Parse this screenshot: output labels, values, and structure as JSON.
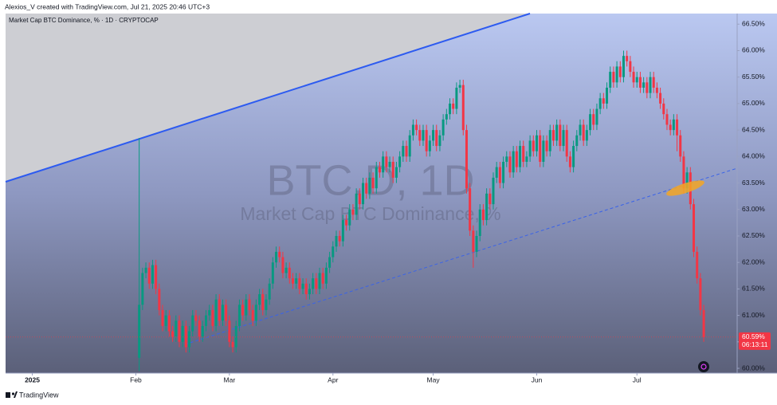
{
  "header": "Alexios_V created with TradingView.com, Jul 21, 2025 20:46 UTC+3",
  "footer": "TradingView",
  "chart_data": {
    "type": "candlestick",
    "title": "Market Cap BTC Dominance, % · 1D · CRYPTOCAP",
    "watermark": "BTC.D, 1D",
    "watermark_subtitle": "Market Cap BTC Dominance, %",
    "last_price_label": "60.59%",
    "countdown": "06:13:11",
    "up_color": "#089981",
    "down_color": "#f23645",
    "grid": false,
    "xlim": [
      -7,
      212
    ],
    "xticks": [
      {
        "value": 1,
        "label": "2025"
      },
      {
        "value": 32,
        "label": "Feb"
      },
      {
        "value": 60,
        "label": "Mar"
      },
      {
        "value": 91,
        "label": "Apr"
      },
      {
        "value": 121,
        "label": "May"
      },
      {
        "value": 152,
        "label": "Jun"
      },
      {
        "value": 182,
        "label": "Jul"
      }
    ],
    "ylim": [
      59.91,
      66.7
    ],
    "yticks": [
      {
        "value": 60,
        "label": "60.00%"
      },
      {
        "value": 60.5,
        "label": "60.50%"
      },
      {
        "value": 61,
        "label": "61.00%"
      },
      {
        "value": 61.5,
        "label": "61.50%"
      },
      {
        "value": 62,
        "label": "62.00%"
      },
      {
        "value": 62.5,
        "label": "62.50%"
      },
      {
        "value": 63,
        "label": "63.00%"
      },
      {
        "value": 63.5,
        "label": "63.50%"
      },
      {
        "value": 64,
        "label": "64.00%"
      },
      {
        "value": 64.5,
        "label": "64.50%"
      },
      {
        "value": 65,
        "label": "65.00%"
      },
      {
        "value": 65.5,
        "label": "65.50%"
      },
      {
        "value": 66,
        "label": "66.00%"
      },
      {
        "value": 66.5,
        "label": "66.50%"
      }
    ],
    "x": [
      33,
      34,
      35,
      36,
      37,
      38,
      39,
      40,
      41,
      42,
      43,
      44,
      45,
      46,
      47,
      48,
      49,
      50,
      51,
      52,
      53,
      54,
      55,
      56,
      57,
      58,
      59,
      60,
      61,
      62,
      63,
      64,
      65,
      66,
      67,
      68,
      69,
      70,
      71,
      72,
      73,
      74,
      75,
      76,
      77,
      78,
      79,
      80,
      81,
      82,
      83,
      84,
      85,
      86,
      87,
      88,
      89,
      90,
      91,
      92,
      93,
      94,
      95,
      96,
      97,
      98,
      99,
      100,
      101,
      102,
      103,
      104,
      105,
      106,
      107,
      108,
      109,
      110,
      111,
      112,
      113,
      114,
      115,
      116,
      117,
      118,
      119,
      120,
      121,
      122,
      123,
      124,
      125,
      126,
      127,
      128,
      129,
      130,
      131,
      132,
      133,
      134,
      135,
      136,
      137,
      138,
      139,
      140,
      141,
      142,
      143,
      144,
      145,
      146,
      147,
      148,
      149,
      150,
      151,
      152,
      153,
      154,
      155,
      156,
      157,
      158,
      159,
      160,
      161,
      162,
      163,
      164,
      165,
      166,
      167,
      168,
      169,
      170,
      171,
      172,
      173,
      174,
      175,
      176,
      177,
      178,
      179,
      180,
      181,
      182,
      183,
      184,
      185,
      186,
      187,
      188,
      189,
      190,
      191,
      192,
      193,
      194,
      195,
      196,
      197,
      198,
      199,
      200,
      201,
      202
    ],
    "open": [
      60.2,
      61.2,
      61.8,
      61.9,
      61.6,
      61.95,
      61.5,
      61.1,
      60.8,
      61.0,
      60.7,
      60.6,
      60.9,
      60.5,
      60.8,
      60.4,
      60.7,
      61.0,
      60.9,
      60.6,
      60.8,
      61.0,
      61.1,
      60.8,
      61.3,
      60.9,
      61.2,
      60.9,
      60.5,
      60.4,
      60.8,
      61.2,
      61.0,
      61.3,
      61.1,
      60.9,
      61.2,
      61.4,
      61.1,
      61.3,
      61.6,
      62.0,
      62.2,
      62.1,
      61.8,
      61.9,
      61.7,
      61.6,
      61.7,
      61.5,
      61.6,
      61.4,
      61.5,
      61.7,
      61.5,
      61.8,
      61.6,
      61.9,
      62.1,
      62.3,
      62.5,
      62.4,
      62.8,
      62.7,
      63.0,
      62.9,
      63.3,
      63.1,
      63.5,
      63.3,
      63.6,
      63.4,
      63.8,
      63.7,
      64.0,
      63.8,
      63.9,
      63.6,
      63.8,
      64.0,
      64.2,
      64.0,
      64.4,
      64.6,
      64.5,
      64.3,
      64.5,
      64.1,
      64.3,
      64.5,
      64.2,
      64.4,
      64.7,
      64.8,
      65.0,
      64.9,
      65.3,
      65.35,
      64.5,
      63.4,
      62.6,
      62.2,
      62.5,
      63.0,
      62.8,
      63.3,
      63.1,
      63.6,
      63.8,
      63.5,
      63.9,
      64.0,
      63.7,
      64.1,
      63.8,
      64.2,
      63.9,
      64.0,
      64.3,
      64.1,
      64.4,
      63.9,
      64.3,
      64.1,
      64.5,
      64.3,
      64.6,
      64.2,
      64.5,
      64.0,
      63.8,
      64.2,
      64.4,
      64.6,
      64.3,
      64.5,
      64.8,
      64.6,
      64.9,
      65.1,
      65.0,
      65.3,
      65.6,
      65.4,
      65.7,
      65.5,
      65.9,
      65.8,
      65.6,
      65.4,
      65.5,
      65.3,
      65.4,
      65.2,
      65.5,
      65.3,
      65.2,
      65.0,
      64.8,
      64.6,
      64.5,
      64.7,
      64.4,
      64.0,
      63.4,
      63.7,
      63.1,
      62.2,
      61.7,
      61.1
    ],
    "high": [
      64.35,
      61.9,
      62.0,
      62.0,
      62.05,
      62.05,
      61.6,
      61.2,
      61.1,
      61.1,
      60.8,
      61.0,
      61.0,
      60.9,
      60.9,
      60.8,
      61.1,
      61.1,
      61.0,
      60.9,
      61.1,
      61.2,
      61.2,
      61.4,
      61.4,
      61.3,
      61.3,
      61.0,
      60.6,
      60.9,
      61.3,
      61.3,
      61.4,
      61.4,
      61.2,
      61.3,
      61.5,
      61.5,
      61.4,
      61.7,
      62.1,
      62.3,
      62.3,
      62.2,
      62.0,
      62.0,
      61.8,
      61.8,
      61.8,
      61.7,
      61.7,
      61.6,
      61.8,
      61.8,
      61.9,
      61.9,
      62.0,
      62.2,
      62.4,
      62.6,
      62.6,
      62.9,
      62.9,
      63.1,
      63.1,
      63.4,
      63.4,
      63.6,
      63.6,
      63.7,
      63.7,
      63.9,
      63.9,
      64.1,
      64.1,
      64.0,
      64.0,
      63.9,
      64.1,
      64.3,
      64.3,
      64.5,
      64.7,
      64.7,
      64.6,
      64.6,
      64.6,
      64.4,
      64.6,
      64.6,
      64.5,
      64.8,
      64.9,
      65.1,
      65.1,
      65.4,
      65.45,
      65.45,
      64.6,
      63.5,
      62.7,
      62.6,
      63.1,
      63.1,
      63.4,
      63.4,
      63.7,
      63.9,
      63.9,
      64.0,
      64.1,
      64.1,
      64.2,
      64.2,
      64.3,
      64.3,
      64.1,
      64.4,
      64.4,
      64.5,
      64.5,
      64.4,
      64.4,
      64.6,
      64.6,
      64.7,
      64.7,
      64.6,
      64.6,
      64.1,
      64.3,
      64.5,
      64.7,
      64.7,
      64.6,
      64.9,
      64.9,
      65.0,
      65.2,
      65.2,
      65.4,
      65.7,
      65.7,
      65.8,
      65.8,
      66.0,
      66.0,
      65.9,
      65.7,
      65.6,
      65.6,
      65.5,
      65.5,
      65.6,
      65.6,
      65.4,
      65.3,
      65.1,
      64.9,
      64.7,
      64.8,
      64.8,
      64.5,
      64.1,
      63.8,
      63.8,
      63.2,
      62.3,
      61.8,
      61.2
    ],
    "low": [
      59.95,
      61.1,
      61.7,
      61.5,
      61.5,
      61.4,
      61.0,
      60.7,
      60.7,
      60.6,
      60.5,
      60.5,
      60.4,
      60.4,
      60.3,
      60.3,
      60.6,
      60.8,
      60.5,
      60.5,
      60.7,
      60.9,
      60.7,
      60.7,
      60.8,
      60.8,
      60.8,
      60.4,
      60.3,
      60.3,
      60.7,
      60.9,
      60.9,
      61.0,
      60.8,
      60.8,
      61.1,
      61.0,
      61.0,
      61.2,
      61.5,
      61.9,
      62.0,
      61.7,
      61.7,
      61.6,
      61.5,
      61.5,
      61.4,
      61.4,
      61.3,
      61.3,
      61.4,
      61.4,
      61.4,
      61.5,
      61.5,
      61.8,
      62.0,
      62.2,
      62.3,
      62.3,
      62.6,
      62.6,
      62.8,
      62.8,
      63.0,
      63.0,
      63.2,
      63.2,
      63.3,
      63.3,
      63.6,
      63.6,
      63.7,
      63.7,
      63.5,
      63.5,
      63.7,
      63.9,
      63.9,
      63.9,
      64.3,
      64.4,
      64.2,
      64.2,
      64.0,
      64.0,
      64.2,
      64.1,
      64.1,
      64.3,
      64.6,
      64.7,
      64.8,
      64.8,
      65.2,
      64.4,
      63.3,
      62.5,
      61.9,
      62.1,
      62.4,
      62.7,
      62.7,
      63.0,
      63.0,
      63.5,
      63.4,
      63.4,
      63.8,
      63.6,
      63.6,
      63.7,
      63.7,
      63.8,
      63.8,
      63.9,
      64.0,
      64.0,
      63.8,
      63.8,
      64.0,
      64.0,
      64.2,
      64.2,
      64.1,
      64.1,
      63.9,
      63.7,
      63.7,
      64.1,
      64.3,
      64.2,
      64.2,
      64.4,
      64.5,
      64.5,
      64.8,
      64.9,
      64.9,
      65.2,
      65.3,
      65.3,
      65.4,
      65.4,
      65.7,
      65.5,
      65.3,
      65.3,
      65.2,
      65.2,
      65.1,
      65.1,
      65.2,
      65.1,
      64.9,
      64.7,
      64.5,
      64.4,
      64.4,
      64.1,
      63.9,
      63.3,
      63.3,
      63.0,
      62.1,
      61.6,
      61.0,
      60.5
    ],
    "close": [
      61.2,
      61.8,
      61.9,
      61.6,
      61.95,
      61.5,
      61.1,
      60.8,
      61.0,
      60.7,
      60.6,
      60.9,
      60.5,
      60.8,
      60.4,
      60.7,
      61.0,
      60.9,
      60.6,
      60.8,
      61.0,
      61.1,
      60.8,
      61.3,
      60.9,
      61.2,
      60.9,
      60.5,
      60.4,
      60.8,
      61.2,
      61.0,
      61.3,
      61.1,
      60.9,
      61.2,
      61.4,
      61.1,
      61.3,
      61.6,
      62.0,
      62.2,
      62.1,
      61.8,
      61.9,
      61.7,
      61.6,
      61.7,
      61.5,
      61.6,
      61.4,
      61.5,
      61.7,
      61.5,
      61.8,
      61.6,
      61.9,
      62.1,
      62.3,
      62.5,
      62.4,
      62.8,
      62.7,
      63.0,
      62.9,
      63.3,
      63.1,
      63.5,
      63.3,
      63.6,
      63.4,
      63.8,
      63.7,
      64.0,
      63.8,
      63.9,
      63.6,
      63.8,
      64.0,
      64.2,
      64.0,
      64.4,
      64.6,
      64.5,
      64.3,
      64.5,
      64.1,
      64.3,
      64.5,
      64.2,
      64.4,
      64.7,
      64.8,
      65.0,
      64.9,
      65.3,
      65.35,
      64.5,
      63.4,
      62.6,
      62.2,
      62.5,
      63.0,
      62.8,
      63.3,
      63.1,
      63.6,
      63.8,
      63.5,
      63.9,
      64.0,
      63.7,
      64.1,
      63.8,
      64.2,
      63.9,
      64.0,
      64.3,
      64.1,
      64.4,
      63.9,
      64.3,
      64.1,
      64.5,
      64.3,
      64.6,
      64.2,
      64.5,
      64.0,
      63.8,
      64.2,
      64.4,
      64.6,
      64.3,
      64.5,
      64.8,
      64.6,
      64.9,
      65.1,
      65.0,
      65.3,
      65.6,
      65.4,
      65.7,
      65.5,
      65.9,
      65.8,
      65.6,
      65.4,
      65.5,
      65.3,
      65.4,
      65.2,
      65.5,
      65.3,
      65.2,
      65.0,
      64.8,
      64.6,
      64.5,
      64.7,
      64.4,
      64.0,
      63.4,
      63.7,
      63.1,
      62.2,
      61.7,
      61.1,
      60.59
    ]
  }
}
